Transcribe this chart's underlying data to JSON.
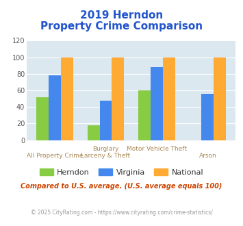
{
  "title_line1": "2019 Herndon",
  "title_line2": "Property Crime Comparison",
  "series": {
    "Herndon": [
      52,
      18,
      60,
      0
    ],
    "Virginia": [
      78,
      48,
      88,
      56
    ],
    "National": [
      100,
      100,
      100,
      100
    ]
  },
  "colors": {
    "Herndon": "#88cc44",
    "Virginia": "#4488ee",
    "National": "#ffaa33"
  },
  "ylim": [
    0,
    120
  ],
  "yticks": [
    0,
    20,
    40,
    60,
    80,
    100,
    120
  ],
  "plot_bg": "#dce8f0",
  "title_color": "#2255cc",
  "label_color": "#aa8855",
  "top_labels": [
    "",
    "Burglary",
    "Motor Vehicle Theft",
    ""
  ],
  "bot_labels": [
    "All Property Crime",
    "Larceny & Theft",
    "",
    "Arson"
  ],
  "legend_labels": [
    "Herndon",
    "Virginia",
    "National"
  ],
  "footnote1": "Compared to U.S. average. (U.S. average equals 100)",
  "footnote2": "© 2025 CityRating.com - https://www.cityrating.com/crime-statistics/",
  "footnote1_color": "#cc4400",
  "footnote2_color": "#999999"
}
